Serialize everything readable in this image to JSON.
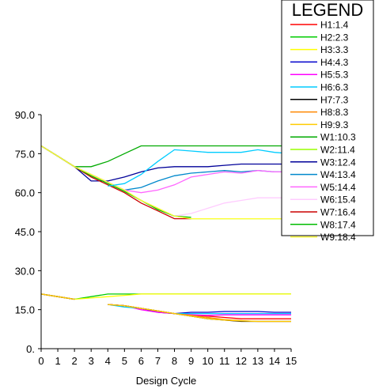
{
  "chart_data": {
    "type": "line",
    "xlabel": "Design Cycle",
    "ylabel": "",
    "xlim": [
      0,
      15
    ],
    "ylim": [
      0,
      90
    ],
    "xticks": [
      0,
      1,
      2,
      3,
      4,
      5,
      6,
      7,
      8,
      9,
      10,
      11,
      12,
      13,
      14,
      15
    ],
    "yticks": [
      0,
      15,
      30,
      45,
      60,
      75,
      90
    ],
    "ytick_labels": [
      "0.",
      "15.0",
      "30.0",
      "45.0",
      "60.0",
      "75.0",
      "90.0"
    ],
    "legend_title": "LEGEND",
    "legend_position": "top-right",
    "grid": false,
    "x": [
      0,
      1,
      2,
      3,
      4,
      5,
      6,
      7,
      8,
      9,
      10,
      11,
      12,
      13,
      14,
      15
    ],
    "series": [
      {
        "name": "H1:1.4",
        "color": "#ff0000",
        "values": [
          21,
          20,
          19,
          null,
          17,
          16.5,
          15.5,
          14.5,
          13.5,
          13,
          12.5,
          12,
          11.5,
          11.5,
          11.5,
          11.5
        ]
      },
      {
        "name": "H2:2.3",
        "color": "#00cc00",
        "values": [
          21,
          20,
          19,
          20,
          21,
          21,
          21,
          21,
          21,
          21,
          21,
          21,
          21,
          21,
          21,
          21
        ]
      },
      {
        "name": "H3:3.3",
        "color": "#ffff00",
        "values": [
          21,
          20,
          19,
          19.5,
          20,
          20.5,
          21,
          21,
          21,
          21,
          21,
          21,
          21,
          21,
          21,
          21
        ]
      },
      {
        "name": "H4:4.3",
        "color": "#0000cc",
        "values": [
          21,
          20,
          19,
          null,
          17,
          16.5,
          15.5,
          14,
          13.5,
          14,
          14,
          14.3,
          14.3,
          14.3,
          14,
          14
        ]
      },
      {
        "name": "H5:5.3",
        "color": "#ff00ff",
        "values": [
          21,
          20,
          19,
          null,
          17,
          16.5,
          15,
          14,
          13.5,
          13,
          12.8,
          13,
          13,
          13,
          13,
          13
        ]
      },
      {
        "name": "H6:6.3",
        "color": "#00ccff",
        "values": [
          21,
          20,
          19,
          null,
          17,
          16,
          15.5,
          14.5,
          13.5,
          13.5,
          13.5,
          13.5,
          13.5,
          13.5,
          13.5,
          13.5
        ]
      },
      {
        "name": "H7:7.3",
        "color": "#000000",
        "values": [
          21,
          20,
          19,
          null,
          17,
          16.5,
          15.5,
          14.5,
          13.5,
          12.5,
          11.5,
          11,
          10.5,
          10.5,
          10.5,
          10.5
        ]
      },
      {
        "name": "H8:8.3",
        "color": "#ff8800",
        "values": [
          21,
          20,
          19,
          null,
          17,
          16.5,
          15.5,
          14.5,
          13.5,
          12.8,
          12,
          11.2,
          10.8,
          10.5,
          10.5,
          10.5
        ]
      },
      {
        "name": "H9:9.3",
        "color": "#ffcc00",
        "values": [
          21,
          20,
          19,
          null,
          17,
          16.5,
          15.5,
          14.5,
          13.5,
          12.5,
          11.5,
          11,
          10.7,
          10.5,
          10.5,
          10.5
        ]
      },
      {
        "name": "W1:10.3",
        "color": "#00aa00",
        "values": [
          78,
          74,
          70,
          70,
          72,
          75,
          78,
          78,
          78,
          78,
          78,
          78,
          78,
          78,
          78,
          78
        ]
      },
      {
        "name": "W2:11.4",
        "color": "#99ff00",
        "values": [
          78,
          74,
          70,
          67,
          64,
          61,
          57,
          54,
          51,
          50,
          50,
          50,
          50,
          50,
          50,
          50
        ]
      },
      {
        "name": "W3:12.4",
        "color": "#000099",
        "values": [
          78,
          74,
          70,
          64.5,
          64.5,
          66,
          68,
          69.5,
          70,
          70,
          70,
          70.5,
          71,
          71,
          71,
          71
        ]
      },
      {
        "name": "W4:13.4",
        "color": "#0088cc",
        "values": [
          78,
          74,
          70,
          67,
          64,
          61,
          62,
          64.5,
          66.5,
          67.5,
          68,
          68.5,
          68,
          68.5,
          68,
          68
        ]
      },
      {
        "name": "W5:14.4",
        "color": "#ff66ff",
        "values": [
          78,
          74,
          70,
          67,
          64,
          61,
          60,
          61,
          63,
          66,
          67,
          68,
          67.5,
          68.5,
          68,
          68
        ]
      },
      {
        "name": "W6:15.4",
        "color": "#ffccff",
        "values": [
          78,
          74,
          70,
          67,
          64,
          61,
          57,
          54,
          51,
          52,
          54,
          56,
          57,
          58,
          58,
          58
        ]
      },
      {
        "name": "W7:16.4",
        "color": "#cc0000",
        "values": [
          78,
          74,
          70,
          66,
          63,
          60,
          56,
          53,
          50,
          50,
          null,
          null,
          null,
          null,
          null,
          null
        ]
      },
      {
        "name": "W8:17.4",
        "color": "#00bb00",
        "values": [
          78,
          74,
          70,
          66.5,
          63.5,
          60.5,
          57,
          53.5,
          51,
          50.5,
          null,
          null,
          null,
          null,
          null,
          null
        ]
      },
      {
        "name": "W9:18.4",
        "color": "#ffff33",
        "values": [
          78,
          74,
          70,
          67,
          64,
          61,
          57,
          54,
          51,
          50,
          50,
          50,
          50,
          50,
          50,
          50
        ]
      }
    ]
  },
  "extra_lines": [
    {
      "name": "H6:6.3",
      "color": "#00ccff",
      "x": [
        4,
        5,
        6,
        7,
        8,
        9,
        10,
        11,
        12,
        13,
        14,
        15
      ],
      "values": [
        62.5,
        63.5,
        67,
        72,
        76.5,
        76,
        75.5,
        75.5,
        75.5,
        76.5,
        75.5,
        75
      ]
    }
  ]
}
